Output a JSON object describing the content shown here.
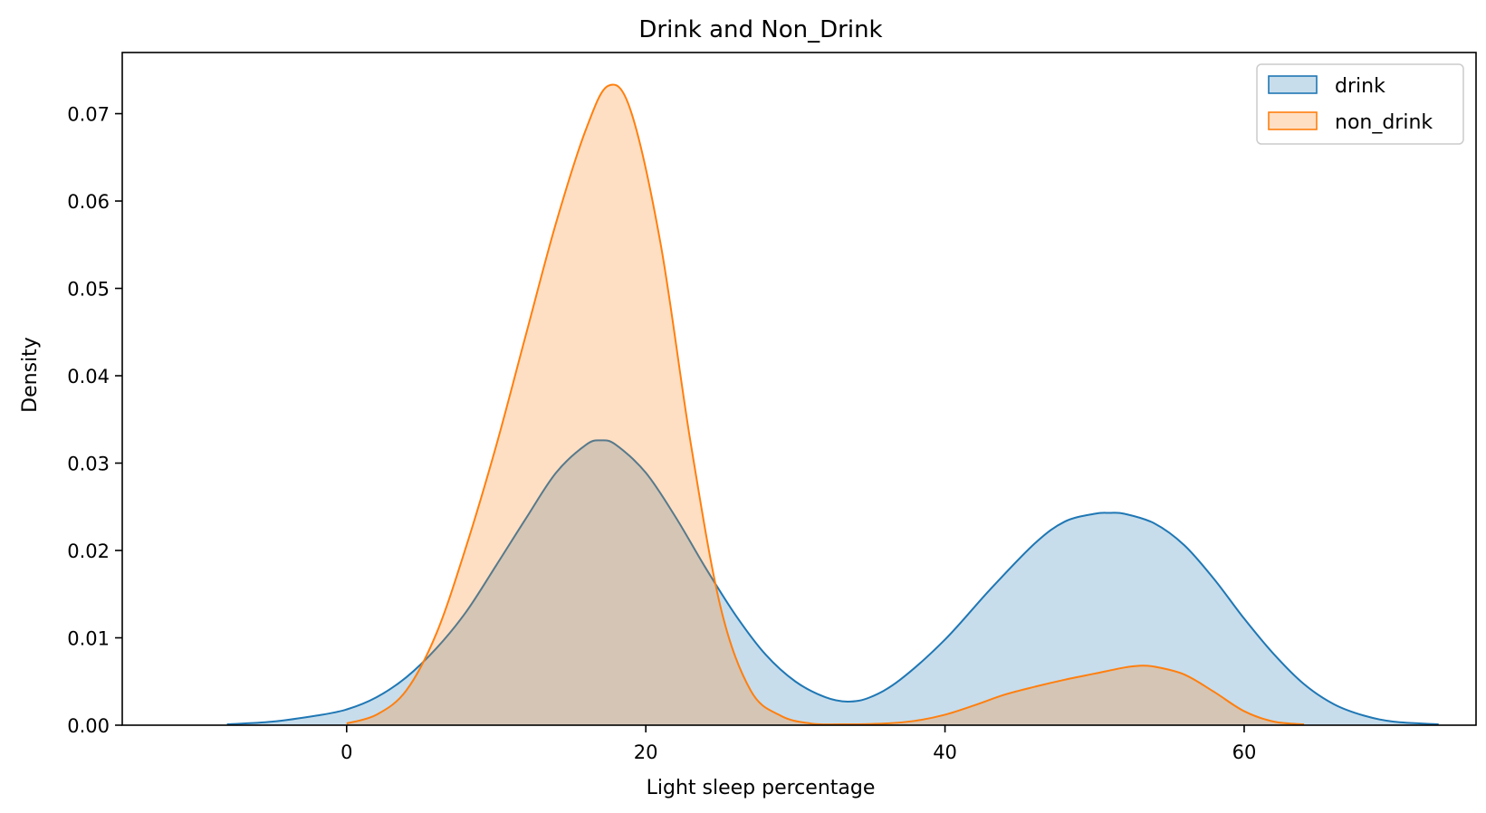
{
  "chart_data": {
    "type": "area",
    "title": "Drink and Non_Drink",
    "xlabel": "Light sleep percentage",
    "ylabel": "Density",
    "xlim": [
      -15,
      75.5
    ],
    "ylim": [
      0,
      0.077
    ],
    "xticks": [
      0,
      20,
      40,
      60
    ],
    "yticks": [
      0.0,
      0.01,
      0.02,
      0.03,
      0.04,
      0.05,
      0.06,
      0.07
    ],
    "grid": false,
    "legend_position": "top-right",
    "series": [
      {
        "name": "drink",
        "color": "#1f77b4",
        "x": [
          -8,
          -5,
          -2,
          0,
          2,
          4,
          6,
          8,
          10,
          12,
          14,
          16,
          17,
          18,
          20,
          22,
          24,
          26,
          28,
          30,
          32,
          33.5,
          35,
          37,
          40,
          43,
          46,
          48,
          50,
          51,
          52,
          54,
          56,
          58,
          60,
          62,
          64,
          66,
          68,
          70,
          73
        ],
        "y": [
          0.0001,
          0.0004,
          0.0011,
          0.0018,
          0.0032,
          0.0055,
          0.0088,
          0.013,
          0.0183,
          0.0237,
          0.0289,
          0.0321,
          0.0326,
          0.0321,
          0.0289,
          0.0238,
          0.018,
          0.0126,
          0.0081,
          0.005,
          0.0032,
          0.0027,
          0.0032,
          0.0052,
          0.0098,
          0.0155,
          0.0208,
          0.0233,
          0.0242,
          0.0243,
          0.0242,
          0.0231,
          0.0206,
          0.0167,
          0.0122,
          0.0081,
          0.0047,
          0.0024,
          0.0011,
          0.0004,
          0.0001
        ]
      },
      {
        "name": "non_drink",
        "color": "#ff7f0e",
        "x": [
          0,
          2,
          4,
          6,
          8,
          10,
          12,
          14,
          16,
          17.5,
          19,
          21,
          23,
          25,
          27,
          29,
          31,
          33,
          36,
          38,
          40,
          42,
          44,
          46,
          48,
          50,
          52,
          53,
          54,
          56,
          58,
          60,
          62,
          64
        ],
        "y": [
          0.0002,
          0.0012,
          0.004,
          0.0105,
          0.0205,
          0.032,
          0.0448,
          0.0575,
          0.0682,
          0.0732,
          0.0703,
          0.055,
          0.0323,
          0.0135,
          0.004,
          0.0011,
          0.0002,
          0.0001,
          0.0002,
          0.0005,
          0.0012,
          0.0023,
          0.0035,
          0.0044,
          0.0052,
          0.0059,
          0.0066,
          0.0068,
          0.0067,
          0.0058,
          0.0038,
          0.0016,
          0.0004,
          0.0001
        ]
      }
    ]
  }
}
